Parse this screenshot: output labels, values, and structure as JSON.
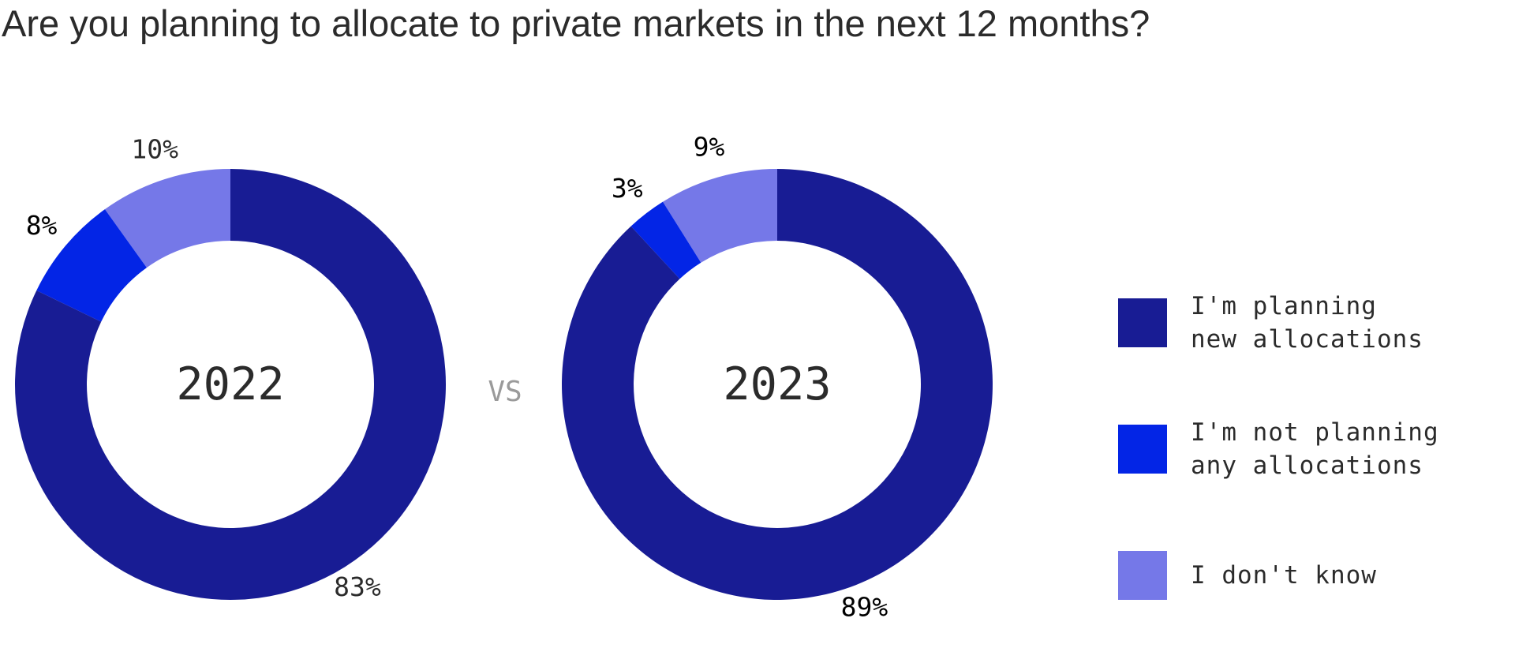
{
  "chart_data": [
    {
      "type": "pie",
      "title": "Are you planning to allocate to private markets in the next 12 months?",
      "center_label": "2022",
      "categories": [
        "I'm planning new allocations",
        "I'm not planning any allocations",
        "I don't know"
      ],
      "values": [
        83,
        8,
        10
      ],
      "value_labels": [
        "83%",
        "8%",
        "10%"
      ],
      "colors": [
        "#181c94",
        "#0325e6",
        "#7578e8"
      ],
      "label_colors": [
        "#2b2b2b",
        "#000000",
        "#2b2b2b"
      ]
    },
    {
      "type": "pie",
      "center_label": "2023",
      "categories": [
        "I'm planning new allocations",
        "I'm not planning any allocations",
        "I don't know"
      ],
      "values": [
        89,
        3,
        9
      ],
      "value_labels": [
        "89%",
        "3%",
        "9%"
      ],
      "colors": [
        "#181c94",
        "#0325e6",
        "#7578e8"
      ],
      "label_colors": [
        "#000000",
        "#000000",
        "#000000"
      ]
    }
  ],
  "separator_label": "VS",
  "legend": {
    "position": "right",
    "items": [
      {
        "line1": "I'm planning",
        "line2": "new allocations",
        "color": "#181c94"
      },
      {
        "line1": "I'm not planning",
        "line2": "any allocations",
        "color": "#0325e6"
      },
      {
        "line1": "I don't know",
        "line2": "",
        "color": "#7578e8"
      }
    ]
  }
}
